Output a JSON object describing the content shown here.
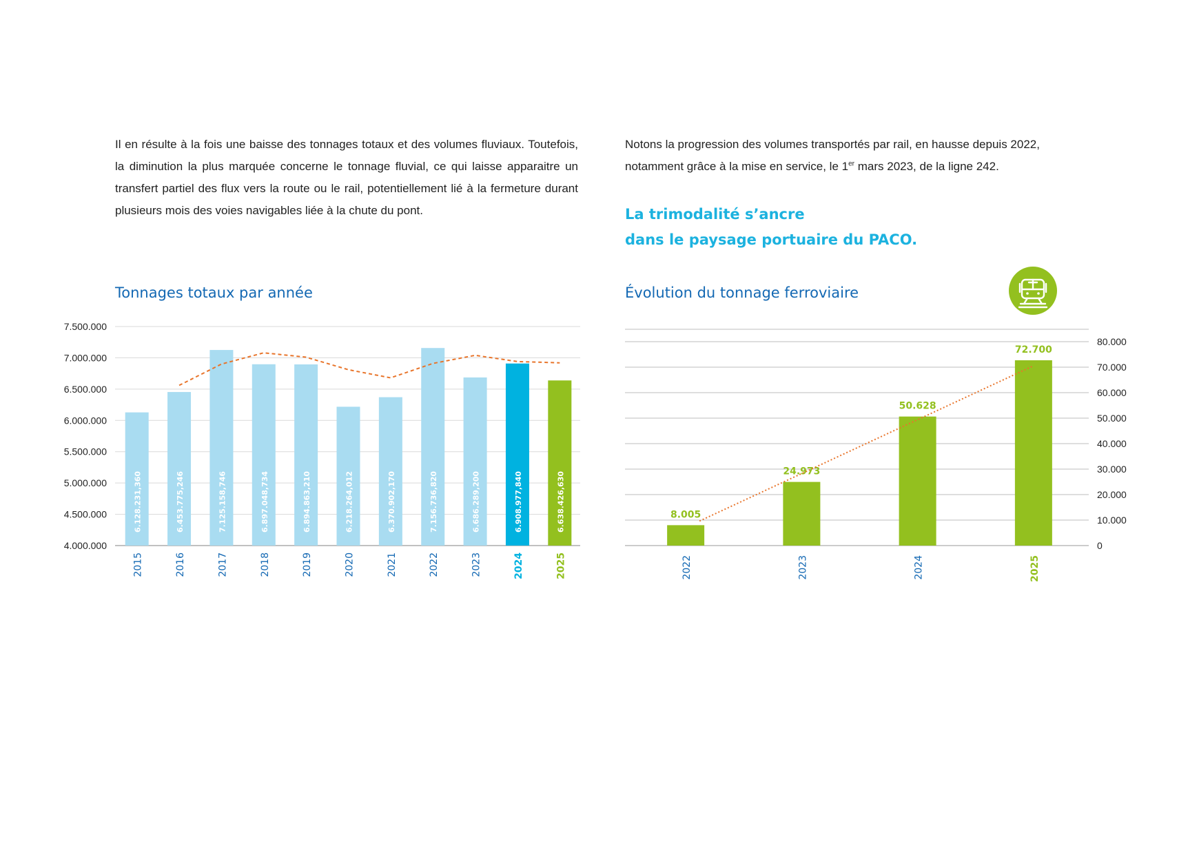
{
  "text": {
    "left_paragraph": "Il en résulte à la fois une baisse des tonnages totaux et des volumes fluviaux. Toutefois, la diminution la plus marquée concerne le tonnage fluvial, ce qui laisse apparaitre un transfert partiel des flux vers la route ou le rail, potentiellement lié à la fermeture durant plusieurs mois des voies navigables liée à la chute du pont.",
    "right_paragraph_before_sup": "Notons la progression des volumes transportés par rail, en hausse depuis 2022, notamment grâce à la mise en service, le 1",
    "right_paragraph_sup": "er",
    "right_paragraph_after_sup": " mars 2023, de la ligne 242.",
    "headline_line1": "La trimodalité s’ancre",
    "headline_line2": "dans le paysage portuaire du PACO."
  },
  "icons": {
    "train_badge": "train-icon"
  },
  "colors": {
    "light_bar": "#a9dcf1",
    "bar_2024": "#00b2e0",
    "green": "#93c01f",
    "trend_orange": "#e8742a",
    "axis_blue": "#1368b3",
    "title_blue": "#1368b3",
    "headline_cyan": "#1cb2df"
  },
  "chart_data": [
    {
      "type": "bar",
      "title": "Tonnages totaux par année",
      "categories": [
        "2015",
        "2016",
        "2017",
        "2018",
        "2019",
        "2020",
        "2021",
        "2022",
        "2023",
        "2024",
        "2025"
      ],
      "values": [
        6128231.36,
        6453775.246,
        7125158.746,
        6897048.734,
        6894863.21,
        6218264.012,
        6370902.17,
        7156736.82,
        6686289.2,
        6908977.84,
        6638426.63
      ],
      "value_labels": [
        "6.128.231,360",
        "6.453.775,246",
        "7.125.158,746",
        "6.897.048,734",
        "6.894.863,210",
        "6.218.264,012",
        "6.370.902,170",
        "7.156.736,820",
        "6.686.289,200",
        "6.908.977,840",
        "6.638.426,630"
      ],
      "highlight": {
        "2024": "#00b2e0",
        "2025": "#93c01f"
      },
      "trendline": {
        "style": "dashed",
        "color": "#e8742a",
        "categories": [
          "2016",
          "2017",
          "2018",
          "2019",
          "2020",
          "2021",
          "2022",
          "2023",
          "2024",
          "2025"
        ],
        "values": [
          6560000,
          6900000,
          7080000,
          7010000,
          6810000,
          6680000,
          6910000,
          7040000,
          6940000,
          6920000
        ]
      },
      "ylim": [
        4000000,
        7500000
      ],
      "yticks": [
        4000000,
        4500000,
        5000000,
        5500000,
        6000000,
        6500000,
        7000000,
        7500000
      ],
      "ytick_labels": [
        "4.000.000",
        "4.500.000",
        "5.000.000",
        "5.500.000",
        "6.000.000",
        "6.500.000",
        "7.000.000",
        "7.500.000"
      ],
      "y_axis_side": "left",
      "grid": true
    },
    {
      "type": "bar",
      "title": "Évolution du tonnage ferroviaire",
      "categories": [
        "2022",
        "2023",
        "2024",
        "2025"
      ],
      "values": [
        8005,
        24973,
        50628,
        72700
      ],
      "value_labels": [
        "8.005",
        "24.973",
        "50.628",
        "72.700"
      ],
      "trendline": {
        "style": "dotted",
        "color": "#e8742a",
        "categories": [
          "2022",
          "2025"
        ],
        "values": [
          8005,
          72700
        ]
      },
      "ylim": [
        0,
        80000
      ],
      "yticks": [
        0,
        10000,
        20000,
        30000,
        40000,
        50000,
        60000,
        70000,
        80000
      ],
      "ytick_labels": [
        "0",
        "10.000",
        "20.000",
        "30.000",
        "40.000",
        "50.000",
        "60.000",
        "70.000",
        "80.000"
      ],
      "y_axis_side": "right",
      "grid": true
    }
  ]
}
